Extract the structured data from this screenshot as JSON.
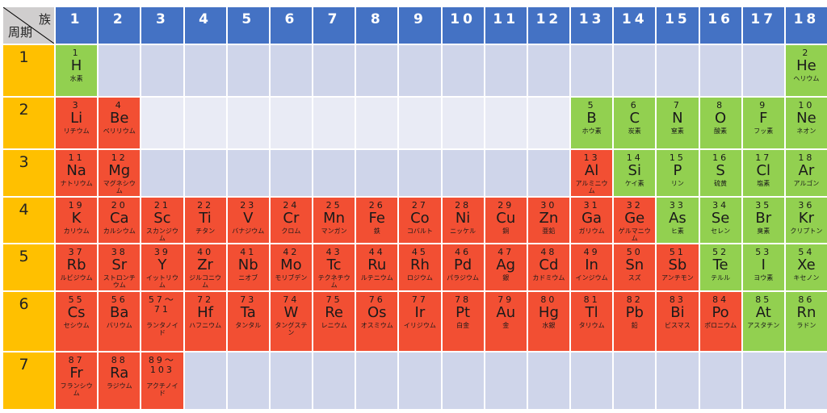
{
  "corner": {
    "group_label": "族",
    "period_label": "周期"
  },
  "groups": [
    "1",
    "2",
    "3",
    "4",
    "5",
    "6",
    "7",
    "8",
    "9",
    "10",
    "11",
    "12",
    "13",
    "14",
    "15",
    "16",
    "17",
    "18"
  ],
  "periods": [
    "1",
    "2",
    "3",
    "4",
    "5",
    "6",
    "7"
  ],
  "colors": {
    "header": "#4472C4",
    "period": "#FFC000",
    "metal": "#F24F33",
    "nonmetal": "#92D050",
    "empty_dark": "#CFD5EA",
    "empty_light": "#E9EBF5",
    "corner": "#D0CECE"
  },
  "elements": [
    {
      "p": 1,
      "g": 1,
      "num": "1",
      "sym": "H",
      "name": "水素",
      "type": "nonmetal"
    },
    {
      "p": 1,
      "g": 18,
      "num": "2",
      "sym": "He",
      "name": "ヘリウム",
      "type": "nonmetal"
    },
    {
      "p": 2,
      "g": 1,
      "num": "3",
      "sym": "Li",
      "name": "リチウム",
      "type": "metal"
    },
    {
      "p": 2,
      "g": 2,
      "num": "4",
      "sym": "Be",
      "name": "ベリリウム",
      "type": "metal"
    },
    {
      "p": 2,
      "g": 13,
      "num": "5",
      "sym": "B",
      "name": "ホウ素",
      "type": "nonmetal"
    },
    {
      "p": 2,
      "g": 14,
      "num": "6",
      "sym": "C",
      "name": "炭素",
      "type": "nonmetal"
    },
    {
      "p": 2,
      "g": 15,
      "num": "7",
      "sym": "N",
      "name": "窒素",
      "type": "nonmetal"
    },
    {
      "p": 2,
      "g": 16,
      "num": "8",
      "sym": "O",
      "name": "酸素",
      "type": "nonmetal"
    },
    {
      "p": 2,
      "g": 17,
      "num": "9",
      "sym": "F",
      "name": "フッ素",
      "type": "nonmetal"
    },
    {
      "p": 2,
      "g": 18,
      "num": "10",
      "sym": "Ne",
      "name": "ネオン",
      "type": "nonmetal"
    },
    {
      "p": 3,
      "g": 1,
      "num": "11",
      "sym": "Na",
      "name": "ナトリウム",
      "type": "metal"
    },
    {
      "p": 3,
      "g": 2,
      "num": "12",
      "sym": "Mg",
      "name": "マグネシウム",
      "type": "metal"
    },
    {
      "p": 3,
      "g": 13,
      "num": "13",
      "sym": "Al",
      "name": "アルミニウム",
      "type": "metal"
    },
    {
      "p": 3,
      "g": 14,
      "num": "14",
      "sym": "Si",
      "name": "ケイ素",
      "type": "nonmetal"
    },
    {
      "p": 3,
      "g": 15,
      "num": "15",
      "sym": "P",
      "name": "リン",
      "type": "nonmetal"
    },
    {
      "p": 3,
      "g": 16,
      "num": "16",
      "sym": "S",
      "name": "硫黄",
      "type": "nonmetal"
    },
    {
      "p": 3,
      "g": 17,
      "num": "17",
      "sym": "Cl",
      "name": "塩素",
      "type": "nonmetal"
    },
    {
      "p": 3,
      "g": 18,
      "num": "18",
      "sym": "Ar",
      "name": "アルゴン",
      "type": "nonmetal"
    },
    {
      "p": 4,
      "g": 1,
      "num": "19",
      "sym": "K",
      "name": "カリウム",
      "type": "metal"
    },
    {
      "p": 4,
      "g": 2,
      "num": "20",
      "sym": "Ca",
      "name": "カルシウム",
      "type": "metal"
    },
    {
      "p": 4,
      "g": 3,
      "num": "21",
      "sym": "Sc",
      "name": "スカンジウム",
      "type": "metal"
    },
    {
      "p": 4,
      "g": 4,
      "num": "22",
      "sym": "Ti",
      "name": "チタン",
      "type": "metal"
    },
    {
      "p": 4,
      "g": 5,
      "num": "23",
      "sym": "V",
      "name": "バナジウム",
      "type": "metal"
    },
    {
      "p": 4,
      "g": 6,
      "num": "24",
      "sym": "Cr",
      "name": "クロム",
      "type": "metal"
    },
    {
      "p": 4,
      "g": 7,
      "num": "25",
      "sym": "Mn",
      "name": "マンガン",
      "type": "metal"
    },
    {
      "p": 4,
      "g": 8,
      "num": "26",
      "sym": "Fe",
      "name": "鉄",
      "type": "metal"
    },
    {
      "p": 4,
      "g": 9,
      "num": "27",
      "sym": "Co",
      "name": "コバルト",
      "type": "metal"
    },
    {
      "p": 4,
      "g": 10,
      "num": "28",
      "sym": "Ni",
      "name": "ニッケル",
      "type": "metal"
    },
    {
      "p": 4,
      "g": 11,
      "num": "29",
      "sym": "Cu",
      "name": "銅",
      "type": "metal"
    },
    {
      "p": 4,
      "g": 12,
      "num": "30",
      "sym": "Zn",
      "name": "亜鉛",
      "type": "metal"
    },
    {
      "p": 4,
      "g": 13,
      "num": "31",
      "sym": "Ga",
      "name": "ガリウム",
      "type": "metal"
    },
    {
      "p": 4,
      "g": 14,
      "num": "32",
      "sym": "Ge",
      "name": "ゲルマニウム",
      "type": "metal"
    },
    {
      "p": 4,
      "g": 15,
      "num": "33",
      "sym": "As",
      "name": "ヒ素",
      "type": "nonmetal"
    },
    {
      "p": 4,
      "g": 16,
      "num": "34",
      "sym": "Se",
      "name": "セレン",
      "type": "nonmetal"
    },
    {
      "p": 4,
      "g": 17,
      "num": "35",
      "sym": "Br",
      "name": "臭素",
      "type": "nonmetal"
    },
    {
      "p": 4,
      "g": 18,
      "num": "36",
      "sym": "Kr",
      "name": "クリプトン",
      "type": "nonmetal"
    },
    {
      "p": 5,
      "g": 1,
      "num": "37",
      "sym": "Rb",
      "name": "ルビジウム",
      "type": "metal"
    },
    {
      "p": 5,
      "g": 2,
      "num": "38",
      "sym": "Sr",
      "name": "ストロンチウム",
      "type": "metal"
    },
    {
      "p": 5,
      "g": 3,
      "num": "39",
      "sym": "Y",
      "name": "イットリウム",
      "type": "metal"
    },
    {
      "p": 5,
      "g": 4,
      "num": "40",
      "sym": "Zr",
      "name": "ジルコニウム",
      "type": "metal"
    },
    {
      "p": 5,
      "g": 5,
      "num": "41",
      "sym": "Nb",
      "name": "ニオブ",
      "type": "metal"
    },
    {
      "p": 5,
      "g": 6,
      "num": "42",
      "sym": "Mo",
      "name": "モリブデン",
      "type": "metal"
    },
    {
      "p": 5,
      "g": 7,
      "num": "43",
      "sym": "Tc",
      "name": "テクネチウム",
      "type": "metal"
    },
    {
      "p": 5,
      "g": 8,
      "num": "44",
      "sym": "Ru",
      "name": "ルテニウム",
      "type": "metal"
    },
    {
      "p": 5,
      "g": 9,
      "num": "45",
      "sym": "Rh",
      "name": "ロジウム",
      "type": "metal"
    },
    {
      "p": 5,
      "g": 10,
      "num": "46",
      "sym": "Pd",
      "name": "パラジウム",
      "type": "metal"
    },
    {
      "p": 5,
      "g": 11,
      "num": "47",
      "sym": "Ag",
      "name": "銀",
      "type": "metal"
    },
    {
      "p": 5,
      "g": 12,
      "num": "48",
      "sym": "Cd",
      "name": "カドミウム",
      "type": "metal"
    },
    {
      "p": 5,
      "g": 13,
      "num": "49",
      "sym": "In",
      "name": "インジウム",
      "type": "metal"
    },
    {
      "p": 5,
      "g": 14,
      "num": "50",
      "sym": "Sn",
      "name": "スズ",
      "type": "metal"
    },
    {
      "p": 5,
      "g": 15,
      "num": "51",
      "sym": "Sb",
      "name": "アンチモン",
      "type": "metal"
    },
    {
      "p": 5,
      "g": 16,
      "num": "52",
      "sym": "Te",
      "name": "テルル",
      "type": "nonmetal"
    },
    {
      "p": 5,
      "g": 17,
      "num": "53",
      "sym": "I",
      "name": "ヨウ素",
      "type": "nonmetal"
    },
    {
      "p": 5,
      "g": 18,
      "num": "54",
      "sym": "Xe",
      "name": "キセノン",
      "type": "nonmetal"
    },
    {
      "p": 6,
      "g": 1,
      "num": "55",
      "sym": "Cs",
      "name": "セシウム",
      "type": "metal"
    },
    {
      "p": 6,
      "g": 2,
      "num": "56",
      "sym": "Ba",
      "name": "バリウム",
      "type": "metal"
    },
    {
      "p": 6,
      "g": 3,
      "num": "57～71",
      "sym": "",
      "name": "ランタノイド",
      "type": "metal"
    },
    {
      "p": 6,
      "g": 4,
      "num": "72",
      "sym": "Hf",
      "name": "ハフニウム",
      "type": "metal"
    },
    {
      "p": 6,
      "g": 5,
      "num": "73",
      "sym": "Ta",
      "name": "タンタル",
      "type": "metal"
    },
    {
      "p": 6,
      "g": 6,
      "num": "74",
      "sym": "W",
      "name": "タングステン",
      "type": "metal"
    },
    {
      "p": 6,
      "g": 7,
      "num": "75",
      "sym": "Re",
      "name": "レニウム",
      "type": "metal"
    },
    {
      "p": 6,
      "g": 8,
      "num": "76",
      "sym": "Os",
      "name": "オスミウム",
      "type": "metal"
    },
    {
      "p": 6,
      "g": 9,
      "num": "77",
      "sym": "Ir",
      "name": "イリジウム",
      "type": "metal"
    },
    {
      "p": 6,
      "g": 10,
      "num": "78",
      "sym": "Pt",
      "name": "白金",
      "type": "metal"
    },
    {
      "p": 6,
      "g": 11,
      "num": "79",
      "sym": "Au",
      "name": "金",
      "type": "metal"
    },
    {
      "p": 6,
      "g": 12,
      "num": "80",
      "sym": "Hg",
      "name": "水銀",
      "type": "metal"
    },
    {
      "p": 6,
      "g": 13,
      "num": "81",
      "sym": "Tl",
      "name": "タリウム",
      "type": "metal"
    },
    {
      "p": 6,
      "g": 14,
      "num": "82",
      "sym": "Pb",
      "name": "鉛",
      "type": "metal"
    },
    {
      "p": 6,
      "g": 15,
      "num": "83",
      "sym": "Bi",
      "name": "ビスマス",
      "type": "metal"
    },
    {
      "p": 6,
      "g": 16,
      "num": "84",
      "sym": "Po",
      "name": "ポロニウム",
      "type": "metal"
    },
    {
      "p": 6,
      "g": 17,
      "num": "85",
      "sym": "At",
      "name": "アスタチン",
      "type": "nonmetal"
    },
    {
      "p": 6,
      "g": 18,
      "num": "86",
      "sym": "Rn",
      "name": "ラドン",
      "type": "nonmetal"
    },
    {
      "p": 7,
      "g": 1,
      "num": "87",
      "sym": "Fr",
      "name": "フランシウム",
      "type": "metal"
    },
    {
      "p": 7,
      "g": 2,
      "num": "88",
      "sym": "Ra",
      "name": "ラジウム",
      "type": "metal"
    },
    {
      "p": 7,
      "g": 3,
      "num": "89～103",
      "sym": "",
      "name": "アクチノイド",
      "type": "metal"
    }
  ]
}
